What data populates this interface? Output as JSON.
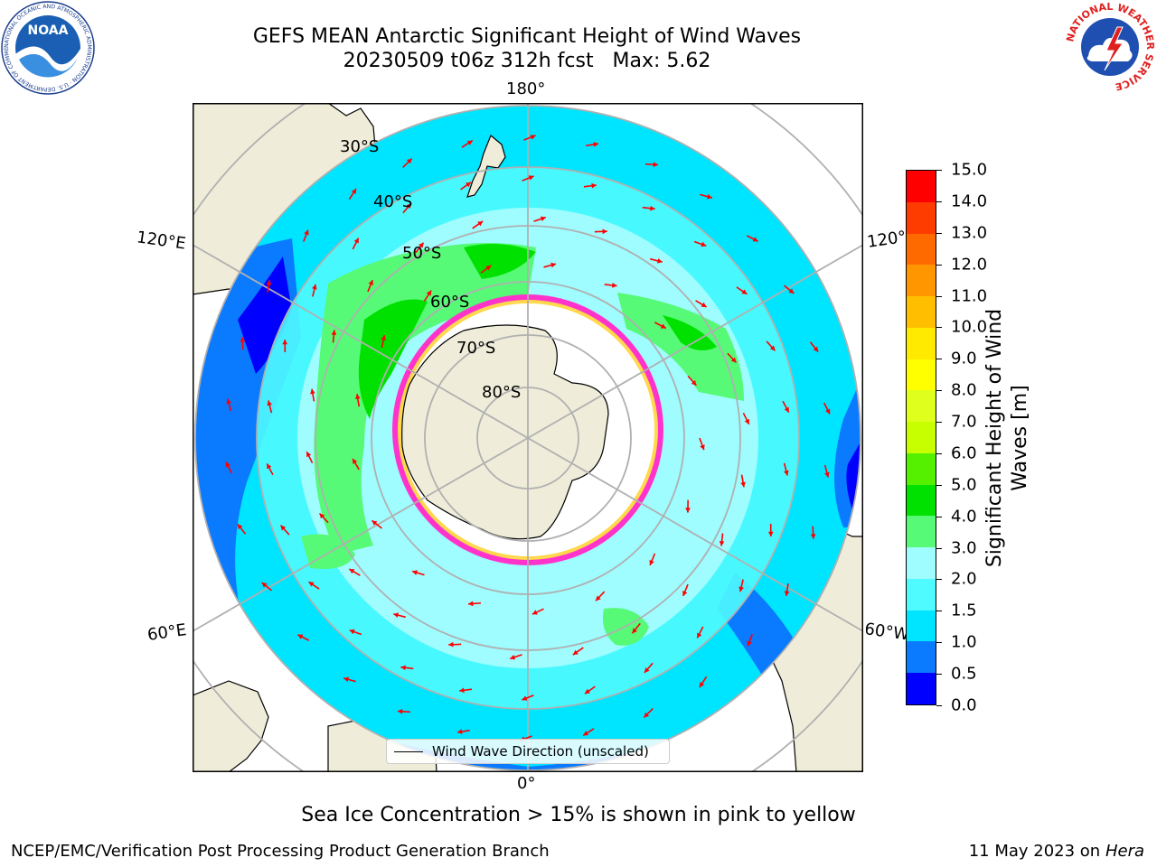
{
  "header": {
    "title_line1": "GEFS MEAN Antarctic Significant Height of Wind Waves",
    "title_line2": "20230509 t06z 312h fcst   Max: 5.62"
  },
  "logos": {
    "left": "NOAA",
    "left_ring_text": "NATIONAL OCEANIC AND ATMOSPHERIC ADMINISTRATION · U.S. DEPARTMENT OF COMMERCE",
    "right_ring_text": "NATIONAL WEATHER SERVICE"
  },
  "map": {
    "projection": "south-polar-stereographic",
    "longitude_labels": {
      "top": "180°",
      "bottom": "0°",
      "upper_left": "120°E",
      "lower_left": "60°E",
      "upper_right": "120°W",
      "lower_right": "60°W"
    },
    "latitude_labels": [
      "30°S",
      "40°S",
      "50°S",
      "60°S",
      "70°S",
      "80°S"
    ],
    "legend": "Wind Wave Direction (unscaled)",
    "arrow_color": "#ff0000",
    "land_color": "#efedd9",
    "ice_edge_colors": [
      "#ff33cc",
      "#ffd84d"
    ]
  },
  "colorbar": {
    "label": "Significant Height of Wind Waves [m]",
    "ticks": [
      "0.0",
      "0.5",
      "1.0",
      "1.5",
      "2.0",
      "3.0",
      "4.0",
      "5.0",
      "6.0",
      "7.0",
      "8.0",
      "9.0",
      "10.0",
      "11.0",
      "12.0",
      "13.0",
      "14.0",
      "15.0"
    ],
    "colors": [
      "#0000ff",
      "#0a7aff",
      "#00e5ff",
      "#4ffbff",
      "#9ffcff",
      "#56fa76",
      "#00e100",
      "#55f000",
      "#c8ff00",
      "#dfff1c",
      "#ffff00",
      "#ffea00",
      "#ffbf00",
      "#ff9600",
      "#ff6a00",
      "#ff3c00",
      "#ff0000"
    ]
  },
  "notes": {
    "sea_ice": "Sea Ice Concentration > 15% is shown in pink to yellow"
  },
  "footer": {
    "left": "NCEP/EMC/Verification Post Processing Product Generation Branch",
    "right_prefix": "11 May 2023 on",
    "right_host": "Hera"
  }
}
